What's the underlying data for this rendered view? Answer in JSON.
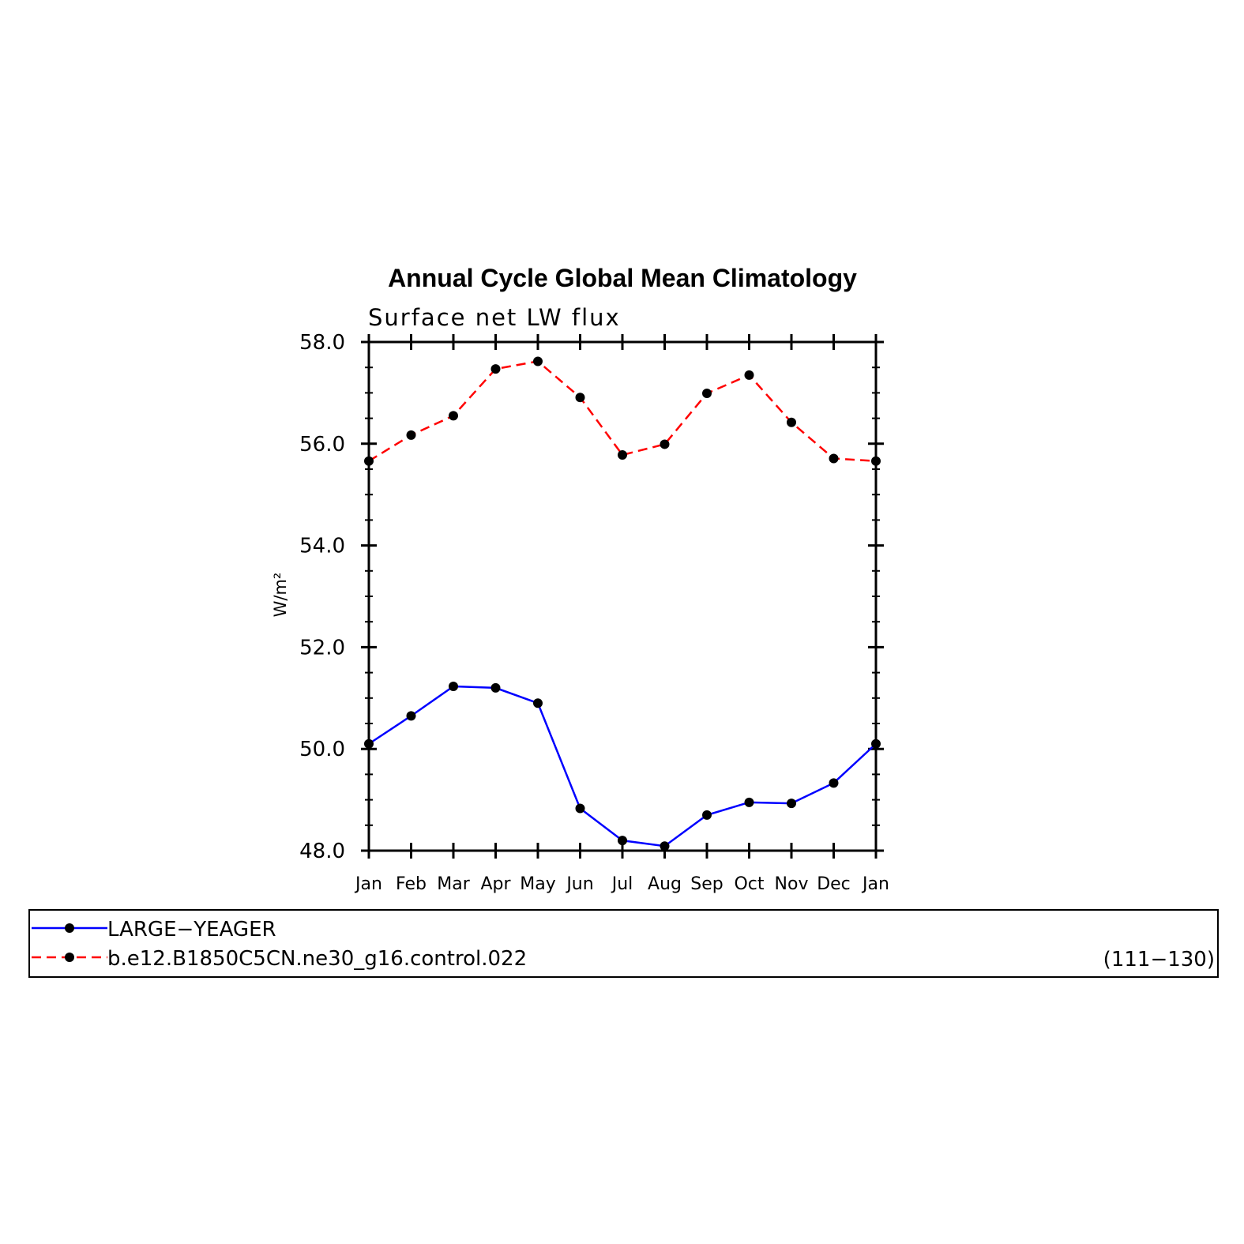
{
  "chart_data": {
    "type": "line",
    "title": "Annual Cycle Global Mean Climatology",
    "subtitle": "Surface net LW flux",
    "ylabel": "W/m²",
    "xlabel": "",
    "categories": [
      "Jan",
      "Feb",
      "Mar",
      "Apr",
      "May",
      "Jun",
      "Jul",
      "Aug",
      "Sep",
      "Oct",
      "Nov",
      "Dec",
      "Jan"
    ],
    "ylim": [
      48.0,
      58.0
    ],
    "yticks": [
      "48.0",
      "50.0",
      "52.0",
      "54.0",
      "56.0",
      "58.0"
    ],
    "ytick_values": [
      48,
      50,
      52,
      54,
      56,
      58
    ],
    "grid": false,
    "legend_position": "bottom",
    "legend_note": "(111−130)",
    "series": [
      {
        "name": "LARGE−YEAGER",
        "color": "#0000ff",
        "dashed": false,
        "values": [
          50.1,
          50.65,
          51.23,
          51.2,
          50.9,
          48.83,
          48.2,
          48.09,
          48.7,
          48.95,
          48.93,
          49.33,
          50.1
        ]
      },
      {
        "name": "b.e12.B1850C5CN.ne30_g16.control.022",
        "color": "#ff0000",
        "dashed": true,
        "values": [
          55.66,
          56.17,
          56.55,
          57.47,
          57.62,
          56.91,
          55.78,
          55.99,
          56.99,
          57.35,
          56.42,
          55.71,
          55.66
        ]
      }
    ]
  }
}
